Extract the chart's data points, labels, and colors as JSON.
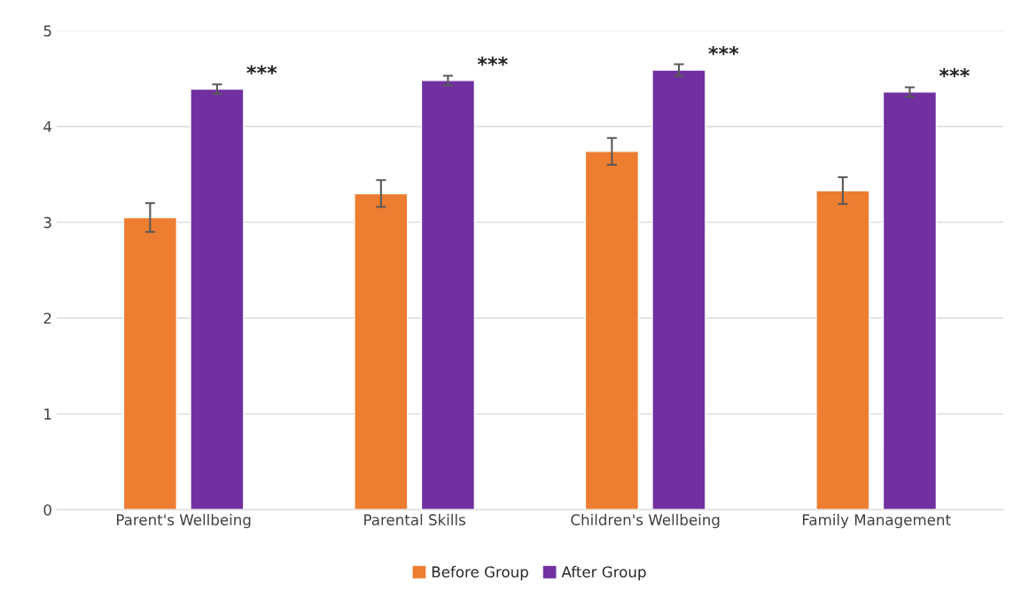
{
  "chart_data": {
    "type": "bar",
    "categories": [
      "Parent's Wellbeing",
      "Parental Skills",
      "Children's Wellbeing",
      "Family Management"
    ],
    "series": [
      {
        "name": "Before Group",
        "color": "#ed7d31",
        "values": [
          3.05,
          3.3,
          3.74,
          3.33
        ],
        "errors": [
          0.15,
          0.14,
          0.14,
          0.14
        ]
      },
      {
        "name": "After Group",
        "color": "#7030a0",
        "values": [
          4.39,
          4.48,
          4.59,
          4.36
        ],
        "errors": [
          0.05,
          0.05,
          0.06,
          0.05
        ]
      }
    ],
    "ylim": [
      0,
      5
    ],
    "yticks": [
      0,
      1,
      2,
      3,
      4,
      5
    ],
    "grid": "y",
    "legend": "bottom",
    "annotations": [
      "***",
      "***",
      "***",
      "***"
    ]
  }
}
